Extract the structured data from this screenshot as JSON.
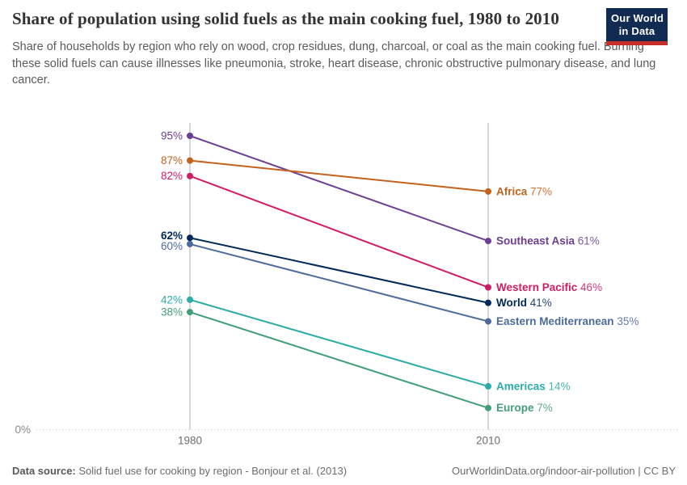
{
  "header": {
    "logo": {
      "line1": "Our World",
      "line2": "in Data"
    }
  },
  "chart_data": {
    "type": "line",
    "variant": "slope",
    "title": "Share of population using solid fuels as the main cooking fuel, 1980 to 2010",
    "subtitle": "Share of households by region who rely on wood, crop residues, dung, charcoal, or coal as the main cooking fuel. Burning these solid fuels can cause illnesses like pneumonia, stroke, heart disease, chronic obstructive pulmonary disease, and lung cancer.",
    "unit": "%",
    "x": [
      "1980",
      "2010"
    ],
    "series": [
      {
        "name": "Southeast Asia",
        "values": [
          95,
          61
        ],
        "color": "#6D3E91"
      },
      {
        "name": "Africa",
        "values": [
          87,
          77
        ],
        "color": "#C4611C"
      },
      {
        "name": "Western Pacific",
        "values": [
          82,
          46
        ],
        "color": "#D01C66"
      },
      {
        "name": "World",
        "values": [
          62,
          41
        ],
        "color": "#00295B",
        "bold": true
      },
      {
        "name": "Eastern Mediterranean",
        "values": [
          60,
          35
        ],
        "color": "#4C6A9C"
      },
      {
        "name": "Americas",
        "values": [
          42,
          14
        ],
        "color": "#2CACA8"
      },
      {
        "name": "Europe",
        "values": [
          38,
          7
        ],
        "color": "#419E78"
      }
    ],
    "ylim": [
      0,
      100
    ],
    "baseline_label": "0%",
    "grid": "vertical-gridlines-at-x-ticks, dotted zero line",
    "legend_position": "inline-right-of-lines",
    "colors": {
      "gridline": "#d0d0d0",
      "zero_line": "#c8c8c8",
      "tick_label": "#6e6e6e",
      "zero_label": "#8a8a8a"
    }
  },
  "footer": {
    "source_label": "Data source:",
    "source_text": " Solid fuel use for cooking by region - Bonjour et al. (2013)",
    "credit": "OurWorldinData.org/indoor-air-pollution | CC BY"
  }
}
